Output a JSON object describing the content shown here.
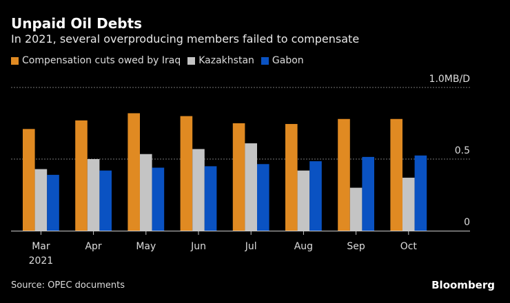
{
  "header": {
    "title": "Unpaid Oil Debts",
    "subtitle": "In 2021, several overproducing members failed to compensate"
  },
  "footer": {
    "source": "Source: OPEC documents",
    "logo": "Bloomberg"
  },
  "chart_data": {
    "type": "bar",
    "title": "Unpaid Oil Debts",
    "subtitle": "In 2021, several overproducing members failed to compensate",
    "categories": [
      "Mar",
      "Apr",
      "May",
      "Jun",
      "Jul",
      "Aug",
      "Sep",
      "Oct"
    ],
    "category_sublabels": [
      "2021",
      "",
      "",
      "",
      "",
      "",
      "",
      ""
    ],
    "series": [
      {
        "name": "Compensation cuts owed by Iraq",
        "color": "#e08a22",
        "values": [
          0.71,
          0.77,
          0.82,
          0.8,
          0.75,
          0.745,
          0.78,
          0.78
        ]
      },
      {
        "name": "Kazakhstan",
        "color": "#c4c4c4",
        "values": [
          0.43,
          0.5,
          0.535,
          0.57,
          0.61,
          0.42,
          0.3,
          0.37
        ]
      },
      {
        "name": "Gabon",
        "color": "#0a52c2",
        "values": [
          0.39,
          0.42,
          0.44,
          0.45,
          0.465,
          0.485,
          0.515,
          0.525
        ]
      }
    ],
    "ylim": [
      0,
      1.0
    ],
    "yticks": [
      {
        "value": 0,
        "label": "0"
      },
      {
        "value": 0.5,
        "label": "0.5"
      },
      {
        "value": 1.0,
        "label": "1.0MB/D"
      }
    ],
    "grid": true,
    "legend": "top-left"
  }
}
